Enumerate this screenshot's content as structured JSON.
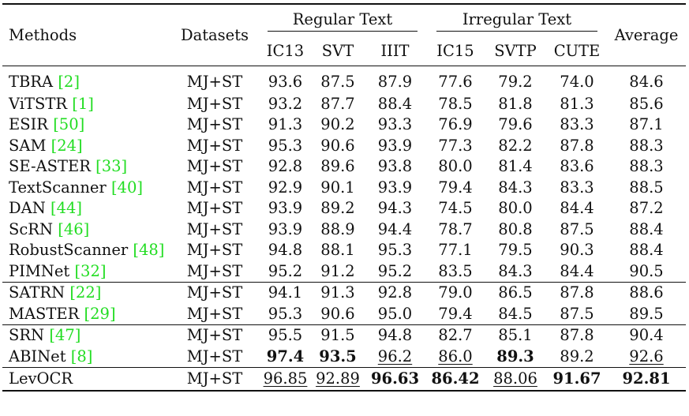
{
  "header": {
    "methods": "Methods",
    "datasets": "Datasets",
    "regular_group": "Regular Text",
    "irregular_group": "Irregular Text",
    "average": "Average",
    "columns": [
      "IC13",
      "SVT",
      "IIIT",
      "IC15",
      "SVTP",
      "CUTE"
    ]
  },
  "rows": [
    {
      "name": "TBRA ",
      "ref": "[2]",
      "ds": "MJ+ST",
      "v": [
        "93.6",
        "87.5",
        "87.9",
        "77.6",
        "79.2",
        "74.0",
        "84.6"
      ]
    },
    {
      "name": "ViTSTR ",
      "ref": "[1]",
      "ds": "MJ+ST",
      "v": [
        "93.2",
        "87.7",
        "88.4",
        "78.5",
        "81.8",
        "81.3",
        "85.6"
      ]
    },
    {
      "name": "ESIR ",
      "ref": "[50]",
      "ds": "MJ+ST",
      "v": [
        "91.3",
        "90.2",
        "93.3",
        "76.9",
        "79.6",
        "83.3",
        "87.1"
      ]
    },
    {
      "name": "SAM ",
      "ref": "[24]",
      "ds": "MJ+ST",
      "v": [
        "95.3",
        "90.6",
        "93.9",
        "77.3",
        "82.2",
        "87.8",
        "88.3"
      ]
    },
    {
      "name": "SE-ASTER ",
      "ref": "[33]",
      "ds": "MJ+ST",
      "v": [
        "92.8",
        "89.6",
        "93.8",
        "80.0",
        "81.4",
        "83.6",
        "88.3"
      ]
    },
    {
      "name": "TextScanner ",
      "ref": "[40]",
      "ds": "MJ+ST",
      "v": [
        "92.9",
        "90.1",
        "93.9",
        "79.4",
        "84.3",
        "83.3",
        "88.5"
      ]
    },
    {
      "name": "DAN ",
      "ref": "[44]",
      "ds": "MJ+ST",
      "v": [
        "93.9",
        "89.2",
        "94.3",
        "74.5",
        "80.0",
        "84.4",
        "87.2"
      ]
    },
    {
      "name": "ScRN ",
      "ref": "[46]",
      "ds": "MJ+ST",
      "v": [
        "93.9",
        "88.9",
        "94.4",
        "78.7",
        "80.8",
        "87.5",
        "88.4"
      ]
    },
    {
      "name": "RobustScanner ",
      "ref": "[48]",
      "ds": "MJ+ST",
      "v": [
        "94.8",
        "88.1",
        "95.3",
        "77.1",
        "79.5",
        "90.3",
        "88.4"
      ]
    },
    {
      "name": "PIMNet ",
      "ref": "[32]",
      "ds": "MJ+ST",
      "v": [
        "95.2",
        "91.2",
        "95.2",
        "83.5",
        "84.3",
        "84.4",
        "90.5"
      ]
    },
    {
      "name": "SATRN ",
      "ref": "[22]",
      "ds": "MJ+ST",
      "v": [
        "94.1",
        "91.3",
        "92.8",
        "79.0",
        "86.5",
        "87.8",
        "88.6"
      ]
    },
    {
      "name": "MASTER ",
      "ref": "[29]",
      "ds": "MJ+ST",
      "v": [
        "95.3",
        "90.6",
        "95.0",
        "79.4",
        "84.5",
        "87.5",
        "89.5"
      ]
    },
    {
      "name": "SRN ",
      "ref": "[47]",
      "ds": "MJ+ST",
      "v": [
        "95.5",
        "91.5",
        "94.8",
        "82.7",
        "85.1",
        "87.8",
        "90.4"
      ]
    },
    {
      "name": "ABINet ",
      "ref": "[8]",
      "ds": "MJ+ST",
      "v": [
        "97.4",
        "93.5",
        "96.2",
        "86.0",
        "89.3",
        "89.2",
        "92.6"
      ]
    },
    {
      "name": "LevOCR",
      "ref": "",
      "ds": "MJ+ST",
      "v": [
        "96.85",
        "92.89",
        "96.63",
        "86.42",
        "88.06",
        "91.67",
        "92.81"
      ]
    }
  ]
}
